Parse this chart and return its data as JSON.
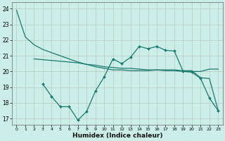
{
  "xlabel": "Humidex (Indice chaleur)",
  "bg_color": "#cceee8",
  "grid_color": "#b8c8c0",
  "line_color": "#1a7a6e",
  "xlim": [
    -0.5,
    23.5
  ],
  "ylim": [
    16.6,
    24.4
  ],
  "yticks": [
    17,
    18,
    19,
    20,
    21,
    22,
    23,
    24
  ],
  "xticks": [
    0,
    1,
    2,
    3,
    4,
    5,
    6,
    7,
    8,
    9,
    10,
    11,
    12,
    13,
    14,
    15,
    16,
    17,
    18,
    19,
    20,
    21,
    22,
    23
  ],
  "line1_x": [
    0,
    1,
    2,
    3,
    4,
    5,
    6,
    7,
    8,
    9,
    10,
    11,
    12,
    13,
    14,
    15,
    16,
    17,
    18,
    19,
    20,
    21,
    22,
    23
  ],
  "line1_y": [
    23.9,
    22.2,
    21.7,
    21.4,
    21.2,
    21.0,
    20.8,
    20.6,
    20.45,
    20.3,
    20.2,
    20.1,
    20.1,
    20.05,
    20.05,
    20.05,
    20.1,
    20.1,
    20.1,
    20.05,
    20.05,
    19.6,
    19.55,
    17.5
  ],
  "line2_x": [
    2,
    3,
    4,
    5,
    6,
    7,
    8,
    9,
    10,
    11,
    12,
    13,
    14,
    15,
    16,
    17,
    18,
    19,
    20,
    21,
    22,
    23
  ],
  "line2_y": [
    20.8,
    20.75,
    20.7,
    20.65,
    20.6,
    20.55,
    20.45,
    20.4,
    20.3,
    20.25,
    20.2,
    20.2,
    20.15,
    20.1,
    20.1,
    20.05,
    20.05,
    20.0,
    20.0,
    20.0,
    20.15,
    20.15
  ],
  "line3_x": [
    3,
    4,
    5,
    6,
    7,
    8,
    9,
    10,
    11,
    12,
    13,
    14,
    15,
    16,
    17,
    18,
    19,
    20,
    21,
    22,
    23
  ],
  "line3_y": [
    19.2,
    18.4,
    17.75,
    17.75,
    16.9,
    17.45,
    18.75,
    19.65,
    20.8,
    20.5,
    20.9,
    21.6,
    21.45,
    21.6,
    21.35,
    21.3,
    20.0,
    19.95,
    19.55,
    18.3,
    17.5
  ],
  "tick_fontsize": 5.5,
  "xlabel_fontsize": 6.5
}
